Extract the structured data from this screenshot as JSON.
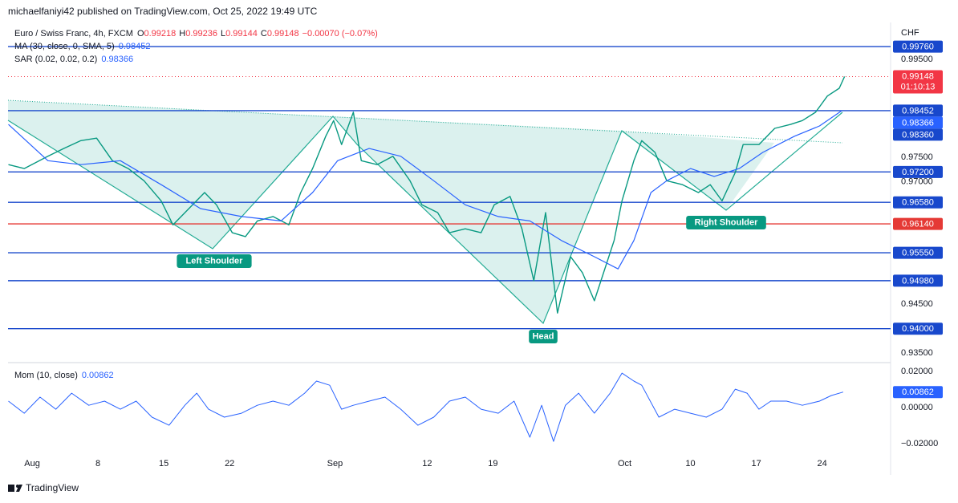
{
  "header": {
    "published": "michaelfaniyi42 published on TradingView.com, Oct 25, 2022 19:49 UTC",
    "brand": "TradingView"
  },
  "chart_data": [
    {
      "type": "line",
      "title": "Euro / Swiss Franc, 4h, FXCM",
      "ohlc": [
        {
          "name": "O",
          "value": "0.99218"
        },
        {
          "name": "H",
          "value": "0.99236"
        },
        {
          "name": "L",
          "value": "0.99144"
        },
        {
          "name": "C",
          "value": "0.99148"
        }
      ],
      "change": "−0.00070 (−0.07%)",
      "currency": "CHF",
      "indicators": [
        {
          "name": "MA (30, close, 0, SMA, 5)",
          "value": 0.98452
        },
        {
          "name": "SAR (0.02, 0.02, 0.2)",
          "value": 0.98366
        }
      ],
      "series": [
        {
          "color": "#089981",
          "x": [
            -1.8,
            -0.6,
            1.2,
            2.4,
            3.7,
            4.9,
            6.1,
            7.3,
            8.5,
            9.8,
            10.7,
            11.9,
            13.1,
            14.0,
            15.2,
            16.2,
            17.1,
            18.3,
            19.5,
            20.4,
            21.3,
            22.3,
            22.9,
            23.5,
            24.4,
            25.0,
            26.2,
            27.4,
            28.7,
            29.6,
            30.8,
            31.7,
            32.9,
            34.1,
            35.1,
            36.3,
            37.2,
            38.1,
            39.0,
            39.9,
            40.9,
            41.8,
            42.7,
            43.4,
            44.2,
            44.8,
            45.7,
            46.3,
            47.3,
            48.2,
            49.4,
            50.6,
            51.5,
            52.4,
            53.4,
            54.0,
            55.2,
            56.4,
            57.6,
            58.5,
            59.5,
            60.4,
            61.3,
            61.7
          ],
          "values": [
            0.9735,
            0.9727,
            0.9752,
            0.9768,
            0.9784,
            0.9789,
            0.9743,
            0.9727,
            0.9702,
            0.9661,
            0.9612,
            0.9645,
            0.9678,
            0.9653,
            0.9596,
            0.9588,
            0.962,
            0.9629,
            0.9612,
            0.9678,
            0.9727,
            0.9793,
            0.9825,
            0.9776,
            0.9842,
            0.9743,
            0.9735,
            0.9752,
            0.9702,
            0.9653,
            0.9637,
            0.9596,
            0.9604,
            0.9596,
            0.9653,
            0.967,
            0.9604,
            0.9498,
            0.9637,
            0.9432,
            0.9547,
            0.9514,
            0.9457,
            0.9514,
            0.958,
            0.9661,
            0.9743,
            0.9784,
            0.976,
            0.9702,
            0.9694,
            0.9678,
            0.9694,
            0.9661,
            0.9719,
            0.9776,
            0.9776,
            0.9809,
            0.9817,
            0.9825,
            0.9842,
            0.9875,
            0.9891,
            0.99148
          ]
        },
        {
          "color": "#2962ff",
          "x": [
            -1.8,
            1.2,
            3.7,
            6.7,
            9.8,
            12.8,
            15.9,
            18.9,
            21.3,
            23.2,
            25.6,
            28.0,
            30.5,
            32.9,
            35.4,
            37.8,
            40.2,
            42.7,
            44.5,
            45.7,
            47.0,
            48.2,
            50.0,
            51.8,
            53.7,
            55.5,
            57.9,
            59.8,
            61.5
          ],
          "values": [
            0.9817,
            0.9743,
            0.9735,
            0.9743,
            0.9694,
            0.9645,
            0.9629,
            0.962,
            0.9678,
            0.9743,
            0.9768,
            0.9752,
            0.9702,
            0.9653,
            0.9629,
            0.962,
            0.958,
            0.9547,
            0.9522,
            0.958,
            0.9678,
            0.9702,
            0.9727,
            0.9711,
            0.9727,
            0.976,
            0.9793,
            0.9814,
            0.98452
          ]
        }
      ],
      "last": {
        "value": 0.99148,
        "countdown": "01:10:13",
        "color": "#f23645"
      },
      "levels": [
        {
          "value": 0.9976,
          "label": "0.99760",
          "color": "#1848cc",
          "line": true
        },
        {
          "value": 0.98452,
          "label": "0.98452",
          "color": "#1848cc",
          "line": true
        },
        {
          "value": 0.98366,
          "label": "0.98366",
          "color": "#2962ff",
          "line": false
        },
        {
          "value": 0.9836,
          "label": "0.98360",
          "color": "#1848cc",
          "line": false
        },
        {
          "value": 0.972,
          "label": "0.97200",
          "color": "#1848cc",
          "line": true
        },
        {
          "value": 0.9658,
          "label": "0.96580",
          "color": "#1848cc",
          "line": true
        },
        {
          "value": 0.9614,
          "label": "0.96140",
          "color": "#e53935",
          "line": true
        },
        {
          "value": 0.9555,
          "label": "0.95550",
          "color": "#1848cc",
          "line": true
        },
        {
          "value": 0.9498,
          "label": "0.94980",
          "color": "#1848cc",
          "line": true
        },
        {
          "value": 0.94,
          "label": "0.94000",
          "color": "#1848cc",
          "line": true
        }
      ],
      "annotations": [
        {
          "text": "Left Shoulder"
        },
        {
          "text": "Head"
        },
        {
          "text": "Right Shoulder"
        }
      ],
      "xlim": [
        -1.83,
        65.2
      ],
      "xticks": [
        {
          "value": 0,
          "label": "Aug"
        },
        {
          "value": 5,
          "label": "8"
        },
        {
          "value": 10,
          "label": "15"
        },
        {
          "value": 15,
          "label": "22"
        },
        {
          "value": 23,
          "label": "Sep"
        },
        {
          "value": 30,
          "label": "12"
        },
        {
          "value": 35,
          "label": "19"
        },
        {
          "value": 45,
          "label": "Oct"
        },
        {
          "value": 50,
          "label": "10"
        },
        {
          "value": 55,
          "label": "17"
        },
        {
          "value": 60,
          "label": "24"
        }
      ],
      "ylim": [
        0.9334,
        1.0022
      ],
      "yticks": [
        {
          "value": 0.995,
          "label": "0.99500"
        },
        {
          "value": 0.975,
          "label": "0.97500"
        },
        {
          "value": 0.97,
          "label": "0.97000"
        },
        {
          "value": 0.945,
          "label": "0.94500"
        },
        {
          "value": 0.935,
          "label": "0.93500"
        }
      ],
      "grid": false
    },
    {
      "type": "line",
      "title": "Mom (10, close)",
      "value": 0.00862,
      "color": "#2962ff",
      "x": [
        -1.8,
        -0.6,
        0.6,
        1.8,
        3.0,
        4.3,
        5.5,
        6.7,
        7.9,
        9.1,
        10.4,
        11.6,
        12.5,
        13.4,
        14.6,
        15.9,
        17.1,
        18.3,
        19.5,
        20.7,
        21.6,
        22.6,
        23.5,
        24.4,
        25.6,
        26.8,
        28.0,
        29.3,
        30.5,
        31.7,
        32.9,
        34.1,
        35.4,
        36.6,
        37.8,
        38.7,
        39.6,
        40.5,
        41.5,
        42.7,
        43.9,
        44.8,
        45.7,
        46.3,
        47.6,
        48.8,
        50.0,
        51.2,
        52.4,
        53.4,
        54.3,
        55.2,
        56.1,
        57.3,
        58.5,
        59.8,
        60.7,
        61.6
      ],
      "values": [
        0.0036,
        -0.0031,
        0.0058,
        -0.0009,
        0.008,
        0.0013,
        0.0036,
        -0.0009,
        0.0036,
        -0.0053,
        -0.0098,
        0.0013,
        0.008,
        -0.0009,
        -0.0053,
        -0.0031,
        0.0013,
        0.0036,
        0.0013,
        0.008,
        0.0147,
        0.0124,
        -0.0009,
        0.0013,
        0.0036,
        0.0058,
        -0.0009,
        -0.0098,
        -0.0053,
        0.0036,
        0.0058,
        -0.0009,
        -0.0031,
        0.0036,
        -0.0164,
        0.0013,
        -0.0187,
        0.0013,
        0.008,
        -0.0031,
        0.008,
        0.0191,
        0.0147,
        0.0124,
        -0.0053,
        -0.0009,
        -0.0031,
        -0.0053,
        -0.0009,
        0.0102,
        0.008,
        -0.0009,
        0.0036,
        0.0036,
        0.0013,
        0.0036,
        0.0067,
        0.00862
      ],
      "xlim": [
        -1.83,
        65.2
      ],
      "ylim": [
        -0.0253,
        0.0236
      ],
      "yticks": [
        {
          "value": 0.02,
          "label": "0.02000"
        },
        {
          "value": 0,
          "label": "0.00000"
        },
        {
          "value": -0.02,
          "label": "−0.02000"
        }
      ],
      "grid": false
    }
  ]
}
